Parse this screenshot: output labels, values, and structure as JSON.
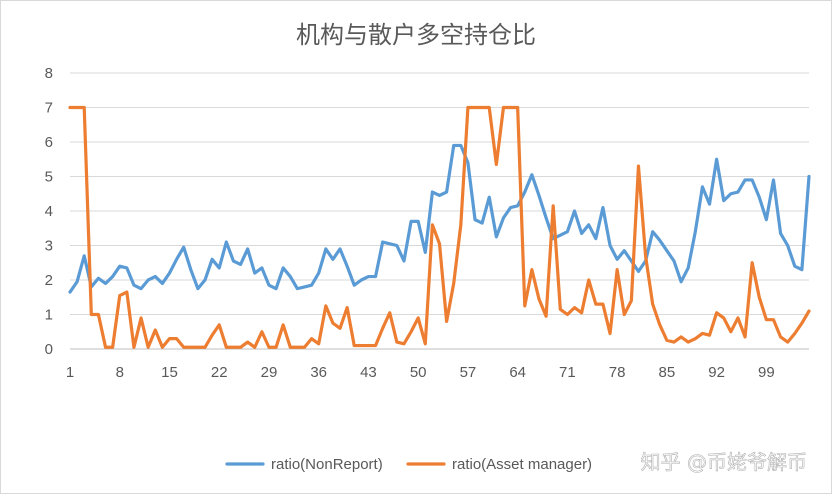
{
  "chart_data": {
    "type": "line",
    "title": "机构与散户多空持仓比",
    "xlabel": "",
    "ylabel": "",
    "ylim": [
      0,
      8
    ],
    "xlim": [
      1,
      105
    ],
    "y_ticks": [
      0,
      1,
      2,
      3,
      4,
      5,
      6,
      7,
      8
    ],
    "x_ticks": [
      1,
      8,
      15,
      22,
      29,
      36,
      43,
      50,
      57,
      64,
      71,
      78,
      85,
      92,
      99
    ],
    "grid": true,
    "legend": "bottom",
    "series": [
      {
        "name": "ratio(NonReport)",
        "color": "#5B9BD5",
        "values": [
          1.65,
          1.95,
          2.7,
          1.8,
          2.05,
          1.9,
          2.1,
          2.4,
          2.35,
          1.85,
          1.75,
          2.0,
          2.1,
          1.9,
          2.2,
          2.6,
          2.95,
          2.3,
          1.75,
          2.0,
          2.6,
          2.35,
          3.1,
          2.55,
          2.45,
          2.9,
          2.2,
          2.35,
          1.85,
          1.75,
          2.35,
          2.1,
          1.75,
          1.8,
          1.85,
          2.2,
          2.9,
          2.6,
          2.9,
          2.4,
          1.85,
          2.0,
          2.1,
          2.1,
          3.1,
          3.05,
          3.0,
          2.55,
          3.7,
          3.7,
          2.8,
          4.55,
          4.45,
          4.55,
          5.9,
          5.9,
          5.4,
          3.75,
          3.65,
          4.4,
          3.25,
          3.8,
          4.1,
          4.15,
          4.55,
          5.05,
          4.45,
          3.8,
          3.2,
          3.3,
          3.4,
          4.0,
          3.35,
          3.6,
          3.2,
          4.1,
          3.0,
          2.6,
          2.85,
          2.55,
          2.25,
          2.55,
          3.4,
          3.15,
          2.85,
          2.55,
          1.95,
          2.35,
          3.4,
          4.7,
          4.2,
          5.5,
          4.3,
          4.5,
          4.55,
          4.9,
          4.9,
          4.4,
          3.75,
          4.9,
          3.35,
          3.0,
          2.4,
          2.3,
          5.0
        ]
      },
      {
        "name": "ratio(Asset manager)",
        "color": "#ED7D31",
        "values": [
          7.0,
          7.0,
          7.0,
          1.0,
          1.0,
          0.05,
          0.05,
          1.55,
          1.65,
          0.05,
          0.9,
          0.05,
          0.55,
          0.05,
          0.3,
          0.3,
          0.05,
          0.05,
          0.05,
          0.05,
          0.4,
          0.7,
          0.05,
          0.05,
          0.05,
          0.2,
          0.05,
          0.5,
          0.05,
          0.05,
          0.7,
          0.05,
          0.05,
          0.05,
          0.3,
          0.15,
          1.25,
          0.75,
          0.6,
          1.2,
          0.1,
          0.1,
          0.1,
          0.1,
          0.6,
          1.05,
          0.2,
          0.15,
          0.5,
          0.9,
          0.15,
          3.6,
          3.05,
          0.8,
          1.9,
          3.6,
          7.0,
          7.0,
          7.0,
          7.0,
          5.35,
          7.0,
          7.0,
          7.0,
          1.25,
          2.3,
          1.45,
          0.95,
          4.15,
          1.15,
          1.0,
          1.2,
          1.05,
          2.0,
          1.3,
          1.3,
          0.45,
          2.3,
          1.0,
          1.4,
          5.3,
          2.7,
          1.3,
          0.7,
          0.25,
          0.2,
          0.35,
          0.2,
          0.3,
          0.45,
          0.4,
          1.05,
          0.9,
          0.5,
          0.9,
          0.35,
          2.5,
          1.5,
          0.85,
          0.85,
          0.35,
          0.2,
          0.45,
          0.75,
          1.1
        ]
      }
    ]
  },
  "watermark": {
    "text": "知乎 @币姥爷解币"
  }
}
